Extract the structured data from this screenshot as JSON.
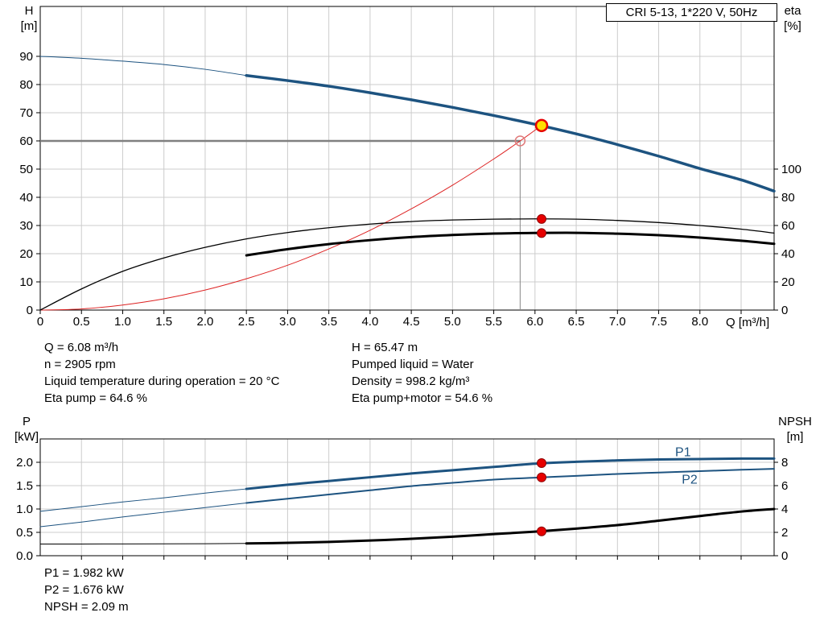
{
  "title_box": "CRI 5-13, 1*220 V, 50Hz",
  "colors": {
    "curve_blue": "#1d5380",
    "curve_black": "#000000",
    "system_red": "#dd2222",
    "marker_red": "#e60000",
    "marker_red_edge": "#8d0000",
    "duty_yellow": "#ffdf00",
    "duty_ring": "#e60000",
    "open_circle": "#e07a7a",
    "ref_gray": "#808080",
    "grid": "#cccccc"
  },
  "top_chart": {
    "left_axis_title": "H",
    "left_axis_unit": "[m]",
    "right_axis_title": "eta",
    "right_axis_unit": "[%]",
    "x_axis_label": "Q [m³/h]"
  },
  "bottom_chart": {
    "left_axis_title": "P",
    "left_axis_unit": "[kW]",
    "right_axis_title": "NPSH",
    "right_axis_unit": "[m]"
  },
  "operating_point_info": {
    "left": [
      "Q = 6.08 m³/h",
      "n = 2905 rpm",
      "Liquid temperature during operation = 20 °C",
      "Eta pump = 64.6 %"
    ],
    "right": [
      "H = 65.47 m",
      "Pumped liquid = Water",
      "Density = 998.2 kg/m³",
      "Eta pump+motor = 54.6 %"
    ]
  },
  "power_info": [
    "P1 = 1.982 kW",
    "P2 = 1.676 kW",
    "NPSH = 2.09 m"
  ],
  "chart_data": [
    {
      "type": "line",
      "title": "CRI 5-13, 1*220 V, 50Hz",
      "xlabel": "Q [m³/h]",
      "ylabel_left": "H [m]",
      "ylabel_right": "eta [%]",
      "xlim": [
        0,
        8.9
      ],
      "ylim_left": [
        0,
        107.7
      ],
      "ylim_right": [
        0,
        215.4
      ],
      "grid_x": [
        0.5,
        1,
        1.5,
        2,
        2.5,
        3,
        3.5,
        4,
        4.5,
        5,
        5.5,
        6,
        6.5,
        7,
        7.5,
        8,
        8.5
      ],
      "grid_y": [
        10,
        20,
        30,
        40,
        50,
        60,
        70,
        80,
        90
      ],
      "x_ticks": {
        "values": [
          0,
          0.5,
          1,
          1.5,
          2,
          2.5,
          3,
          3.5,
          4,
          4.5,
          5,
          5.5,
          6,
          6.5,
          7,
          7.5,
          8,
          8.5
        ],
        "labels": [
          "0",
          "0.5",
          "1.0",
          "1.5",
          "2.0",
          "2.5",
          "3.0",
          "3.5",
          "4.0",
          "4.5",
          "5.0",
          "5.5",
          "6.0",
          "6.5",
          "7.0",
          "7.5",
          "8.0",
          ""
        ]
      },
      "y_ticks_left": {
        "values": [
          0,
          10,
          20,
          30,
          40,
          50,
          60,
          70,
          80,
          90
        ],
        "labels": [
          "0",
          "10",
          "20",
          "30",
          "40",
          "50",
          "60",
          "70",
          "80",
          "90"
        ]
      },
      "y_ticks_right": {
        "values": [
          0,
          20,
          40,
          60,
          80,
          100
        ],
        "labels": [
          "0",
          "20",
          "40",
          "60",
          "80",
          "100"
        ]
      },
      "ref_lines": [
        {
          "name": "head-setpoint-hline",
          "type": "h",
          "y": 60,
          "x1": 0,
          "x2": 5.82,
          "color": "#808080",
          "width": 2.5
        },
        {
          "name": "flow-setpoint-vline",
          "type": "v",
          "x": 5.82,
          "y1": 0,
          "y2": 60,
          "color": "#888888",
          "width": 1
        }
      ],
      "series": [
        {
          "name": "head-curve-lead",
          "axis": "left",
          "color": "#1d5380",
          "width": 1,
          "points": [
            [
              0,
              90
            ],
            [
              0.5,
              89.3
            ],
            [
              1,
              88.3
            ],
            [
              1.5,
              87.1
            ],
            [
              2,
              85.4
            ],
            [
              2.5,
              83.2
            ]
          ]
        },
        {
          "name": "system-curve",
          "axis": "left",
          "color": "#dd2222",
          "width": 1,
          "points": [
            [
              0,
              0
            ],
            [
              0.5,
              0.4
            ],
            [
              1,
              1.8
            ],
            [
              1.5,
              4
            ],
            [
              2,
              7.1
            ],
            [
              2.5,
              11.1
            ],
            [
              3,
              15.9
            ],
            [
              3.5,
              21.7
            ],
            [
              4,
              28.3
            ],
            [
              4.5,
              35.9
            ],
            [
              5,
              44.3
            ],
            [
              5.5,
              53.6
            ],
            [
              5.82,
              60
            ],
            [
              6.08,
              65.5
            ]
          ]
        },
        {
          "name": "eta-pump-curve",
          "axis": "right",
          "color": "#000000",
          "width": 1.3,
          "points": [
            [
              0,
              0
            ],
            [
              0.5,
              15
            ],
            [
              1,
              27.5
            ],
            [
              1.5,
              37
            ],
            [
              2,
              44.5
            ],
            [
              2.5,
              50.5
            ],
            [
              3,
              55
            ],
            [
              3.5,
              58.4
            ],
            [
              4,
              61
            ],
            [
              4.5,
              62.8
            ],
            [
              5,
              63.9
            ],
            [
              5.5,
              64.5
            ],
            [
              6,
              64.7
            ],
            [
              6.5,
              64.5
            ],
            [
              7,
              63.6
            ],
            [
              7.5,
              62.1
            ],
            [
              8,
              60
            ],
            [
              8.5,
              57.4
            ],
            [
              8.9,
              54.6
            ]
          ]
        },
        {
          "name": "eta-pump-motor-curve",
          "axis": "right",
          "color": "#000000",
          "width": 3,
          "points": [
            [
              2.5,
              38.8
            ],
            [
              3,
              43.2
            ],
            [
              3.5,
              46.8
            ],
            [
              4,
              49.6
            ],
            [
              4.5,
              51.8
            ],
            [
              5,
              53.3
            ],
            [
              5.5,
              54.3
            ],
            [
              6,
              54.7
            ],
            [
              6.5,
              54.8
            ],
            [
              7,
              54.2
            ],
            [
              7.5,
              53.1
            ],
            [
              8,
              51.4
            ],
            [
              8.5,
              49.2
            ],
            [
              8.9,
              47
            ]
          ]
        },
        {
          "name": "head-curve",
          "axis": "left",
          "color": "#1d5380",
          "width": 3.5,
          "points": [
            [
              2.5,
              83.2
            ],
            [
              3,
              81.4
            ],
            [
              3.5,
              79.4
            ],
            [
              4,
              77.1
            ],
            [
              4.5,
              74.6
            ],
            [
              5,
              71.9
            ],
            [
              5.5,
              69
            ],
            [
              6,
              65.9
            ],
            [
              6.5,
              62.5
            ],
            [
              7,
              58.7
            ],
            [
              7.5,
              54.6
            ],
            [
              8,
              50.2
            ],
            [
              8.5,
              46.2
            ],
            [
              8.9,
              42.2
            ]
          ]
        }
      ],
      "markers": [
        {
          "name": "setpoint-open-marker",
          "type": "open",
          "x": 5.82,
          "y": 60,
          "axis": "left"
        },
        {
          "name": "eta-pump-dot",
          "type": "dot",
          "x": 6.08,
          "y": 64.6,
          "axis": "right"
        },
        {
          "name": "eta-pump-motor-dot",
          "type": "dot",
          "x": 6.08,
          "y": 54.6,
          "axis": "right"
        },
        {
          "name": "duty-point-marker",
          "type": "duty",
          "x": 6.08,
          "y": 65.47,
          "axis": "left"
        }
      ],
      "annotations": []
    },
    {
      "type": "line",
      "title": "",
      "xlabel": "",
      "ylabel_left": "P [kW]",
      "ylabel_right": "NPSH [m]",
      "xlim": [
        0,
        8.9
      ],
      "ylim_left": [
        0,
        2.5
      ],
      "ylim_right": [
        0,
        10
      ],
      "grid_x": [
        0.5,
        1,
        1.5,
        2,
        2.5,
        3,
        3.5,
        4,
        4.5,
        5,
        5.5,
        6,
        6.5,
        7,
        7.5,
        8,
        8.5
      ],
      "grid_y": [
        0.5,
        1,
        1.5,
        2
      ],
      "x_ticks": {
        "values": [
          0.5,
          1,
          1.5,
          2,
          2.5,
          3,
          3.5,
          4,
          4.5,
          5,
          5.5,
          6,
          6.5,
          7,
          7.5,
          8,
          8.5
        ],
        "labels": [
          "",
          "",
          "",
          "",
          "",
          "",
          "",
          "",
          "",
          "",
          "",
          "",
          "",
          "",
          "",
          "",
          ""
        ]
      },
      "y_ticks_left": {
        "values": [
          0,
          0.5,
          1,
          1.5,
          2
        ],
        "labels": [
          "0.0",
          "0.5",
          "1.0",
          "1.5",
          "2.0"
        ]
      },
      "y_ticks_right": {
        "values": [
          0,
          2,
          4,
          6,
          8
        ],
        "labels": [
          "0",
          "2",
          "4",
          "6",
          "8"
        ]
      },
      "ref_lines": [],
      "series": [
        {
          "name": "p1-curve-lead",
          "axis": "left",
          "color": "#1d5380",
          "width": 1,
          "points": [
            [
              0,
              0.95
            ],
            [
              0.5,
              1.05
            ],
            [
              1,
              1.15
            ],
            [
              1.5,
              1.24
            ],
            [
              2,
              1.34
            ],
            [
              2.5,
              1.43
            ]
          ]
        },
        {
          "name": "p2-curve-lead",
          "axis": "left",
          "color": "#1d5380",
          "width": 1,
          "points": [
            [
              0,
              0.62
            ],
            [
              0.5,
              0.72
            ],
            [
              1,
              0.83
            ],
            [
              1.5,
              0.93
            ],
            [
              2,
              1.03
            ],
            [
              2.5,
              1.13
            ]
          ]
        },
        {
          "name": "npsh-curve-lead",
          "axis": "right",
          "color": "#000000",
          "width": 1,
          "points": [
            [
              0,
              1
            ],
            [
              0.5,
              1
            ],
            [
              1,
              1.01
            ],
            [
              1.5,
              1.02
            ],
            [
              2,
              1.03
            ],
            [
              2.5,
              1.05
            ]
          ]
        },
        {
          "name": "p2-curve",
          "axis": "left",
          "color": "#1d5380",
          "width": 2,
          "points": [
            [
              2.5,
              1.13
            ],
            [
              3,
              1.22
            ],
            [
              3.5,
              1.31
            ],
            [
              4,
              1.4
            ],
            [
              4.5,
              1.49
            ],
            [
              5,
              1.56
            ],
            [
              5.5,
              1.63
            ],
            [
              6,
              1.67
            ],
            [
              6.5,
              1.71
            ],
            [
              7,
              1.75
            ],
            [
              7.5,
              1.78
            ],
            [
              8,
              1.81
            ],
            [
              8.5,
              1.84
            ],
            [
              8.9,
              1.86
            ]
          ]
        },
        {
          "name": "p1-curve",
          "axis": "left",
          "color": "#1d5380",
          "width": 3,
          "points": [
            [
              2.5,
              1.43
            ],
            [
              3,
              1.52
            ],
            [
              3.5,
              1.6
            ],
            [
              4,
              1.68
            ],
            [
              4.5,
              1.76
            ],
            [
              5,
              1.83
            ],
            [
              5.5,
              1.9
            ],
            [
              6,
              1.97
            ],
            [
              6.5,
              2.01
            ],
            [
              7,
              2.04
            ],
            [
              7.5,
              2.06
            ],
            [
              8,
              2.07
            ],
            [
              8.5,
              2.08
            ],
            [
              8.9,
              2.08
            ]
          ]
        },
        {
          "name": "npsh-curve",
          "axis": "right",
          "color": "#000000",
          "width": 3,
          "points": [
            [
              2.5,
              1.05
            ],
            [
              3,
              1.1
            ],
            [
              3.5,
              1.18
            ],
            [
              4,
              1.3
            ],
            [
              4.5,
              1.45
            ],
            [
              5,
              1.63
            ],
            [
              5.5,
              1.85
            ],
            [
              6,
              2.06
            ],
            [
              6.5,
              2.32
            ],
            [
              7,
              2.62
            ],
            [
              7.5,
              3.0
            ],
            [
              8,
              3.4
            ],
            [
              8.5,
              3.78
            ],
            [
              8.9,
              4.0
            ]
          ]
        }
      ],
      "markers": [
        {
          "name": "p1-dot",
          "type": "dot",
          "x": 6.08,
          "y": 1.982,
          "axis": "left"
        },
        {
          "name": "p2-dot",
          "type": "dot",
          "x": 6.08,
          "y": 1.676,
          "axis": "left"
        },
        {
          "name": "npsh-dot",
          "type": "dot",
          "x": 6.08,
          "y": 2.09,
          "axis": "right"
        }
      ],
      "annotations": [
        {
          "text": "P1",
          "x": 7.7,
          "y": 2.13,
          "axis": "left",
          "color": "#1d5380"
        },
        {
          "text": "P2",
          "x": 7.78,
          "y": 1.54,
          "axis": "left",
          "color": "#1d5380"
        }
      ]
    }
  ]
}
